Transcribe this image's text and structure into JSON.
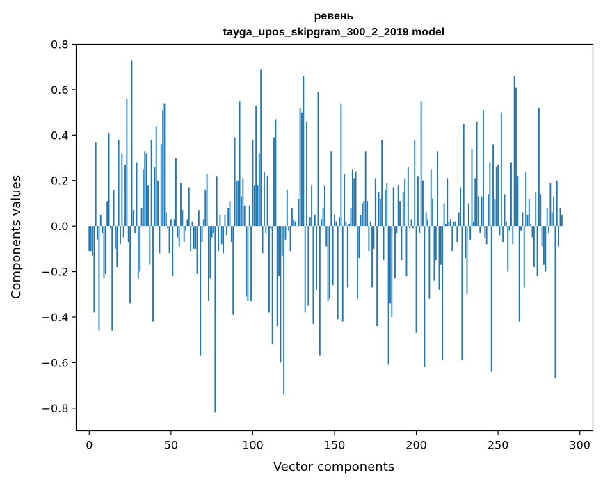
{
  "chart_data": {
    "type": "bar",
    "title": "ревень",
    "subtitle": "tayga_upos_skipgram_300_2_2019 model",
    "xlabel": "Vector components",
    "ylabel": "Components values",
    "xlim": [
      -8,
      308
    ],
    "ylim": [
      -0.9,
      0.8
    ],
    "xticks": [
      0,
      50,
      100,
      150,
      200,
      250,
      300
    ],
    "xtick_labels": [
      "0",
      "50",
      "100",
      "150",
      "200",
      "250",
      "300"
    ],
    "yticks": [
      -0.8,
      -0.6,
      -0.4,
      -0.2,
      0.0,
      0.2,
      0.4,
      0.6,
      0.8
    ],
    "ytick_labels": [
      "−0.8",
      "−0.6",
      "−0.4",
      "−0.2",
      "0.0",
      "0.2",
      "0.4",
      "0.6",
      "0.8"
    ],
    "bar_color": "#1f77b4",
    "grid": false,
    "x": "0..299",
    "values": [
      -0.11,
      -0.11,
      -0.13,
      -0.38,
      0.37,
      -0.06,
      -0.46,
      0.05,
      -0.03,
      -0.23,
      -0.21,
      0.11,
      0.41,
      -0.01,
      -0.46,
      0.16,
      -0.1,
      -0.18,
      0.38,
      -0.08,
      0.32,
      -0.05,
      0.27,
      0.56,
      -0.07,
      -0.34,
      0.73,
      0.07,
      -0.03,
      0.28,
      -0.23,
      -0.2,
      0.08,
      0.25,
      0.33,
      0.32,
      0.18,
      -0.17,
      0.38,
      -0.42,
      0.26,
      0.44,
      0.2,
      -0.12,
      0.36,
      0.51,
      0.54,
      0.06,
      -0.01,
      -0.12,
      0.03,
      -0.22,
      0.03,
      0.3,
      -0.05,
      -0.09,
      0.19,
      0.07,
      -0.07,
      -0.02,
      0.03,
      0.17,
      -0.11,
      0.02,
      -0.1,
      -0.1,
      -0.21,
      0.07,
      -0.57,
      -0.07,
      0.03,
      0.16,
      0.23,
      -0.33,
      -0.23,
      -0.05,
      -0.03,
      -0.82,
      0.22,
      -0.11,
      0.05,
      -0.08,
      -0.12,
      0.05,
      -0.04,
      0.08,
      0.11,
      -0.07,
      -0.39,
      0.39,
      0.2,
      0.2,
      0.55,
      0.13,
      0.21,
      0.09,
      -0.31,
      -0.33,
      0.09,
      -0.33,
      0.38,
      0.18,
      0.53,
      0.18,
      0.32,
      0.69,
      -0.12,
      0.24,
      -0.03,
      0.22,
      -0.38,
      -0.01,
      -0.52,
      0.39,
      0.47,
      -0.44,
      -0.22,
      -0.6,
      -0.13,
      -0.74,
      -0.06,
      0.16,
      -0.02,
      -0.11,
      0.08,
      0.03,
      0.02,
      0.0,
      0.12,
      0.52,
      0.5,
      0.66,
      -0.38,
      0.46,
      -0.35,
      0.04,
      0.18,
      -0.43,
      0.05,
      -0.28,
      0.59,
      -0.57,
      0.03,
      0.08,
      0.18,
      -0.09,
      -0.33,
      -0.32,
      0.33,
      -0.26,
      0.05,
      0.02,
      -0.41,
      0.04,
      0.54,
      -0.42,
      0.23,
      0.02,
      -0.27,
      0.01,
      0.08,
      0.25,
      0.21,
      0.24,
      -0.32,
      -0.14,
      0.05,
      0.1,
      0.11,
      0.33,
      0.11,
      -0.11,
      0.02,
      -0.27,
      -0.1,
      0.21,
      -0.44,
      0.15,
      0.12,
      0.38,
      -0.15,
      0.16,
      0.19,
      -0.61,
      -0.34,
      -0.4,
      0.17,
      -0.23,
      -0.03,
      0.18,
      0.11,
      -0.15,
      0.15,
      0.21,
      -0.22,
      0.26,
      -0.01,
      0.03,
      -0.01,
      0.38,
      -0.47,
      0.22,
      -0.03,
      0.55,
      0.2,
      -0.62,
      0.06,
      0.03,
      -0.32,
      0.25,
      0.12,
      -0.24,
      -0.15,
      0.33,
      -0.28,
      -0.17,
      -0.59,
      0.1,
      0.01,
      0.21,
      0.02,
      0.03,
      -0.11,
      0.02,
      0.02,
      -0.07,
      0.06,
      0.17,
      -0.59,
      0.45,
      -0.14,
      -0.3,
      0.1,
      -0.06,
      0.34,
      0.02,
      0.21,
      0.46,
      0.13,
      -0.03,
      0.13,
      0.51,
      -0.05,
      -0.08,
      0.14,
      0.28,
      -0.64,
      0.36,
      0.12,
      0.26,
      0.27,
      -0.04,
      0.5,
      -0.07,
      0.14,
      0.02,
      -0.2,
      -0.02,
      0.28,
      -0.08,
      0.66,
      0.61,
      0.22,
      -0.42,
      -0.02,
      0.06,
      -0.27,
      0.24,
      0.05,
      0.12,
      0.01,
      -0.05,
      -0.18,
      0.15,
      -0.22,
      0.52,
      0.14,
      -0.09,
      -0.17,
      -0.2,
      0.08,
      -0.03,
      0.19,
      0.06,
      0.13,
      -0.67,
      0.2,
      -0.09,
      0.08,
      0.05
    ]
  }
}
